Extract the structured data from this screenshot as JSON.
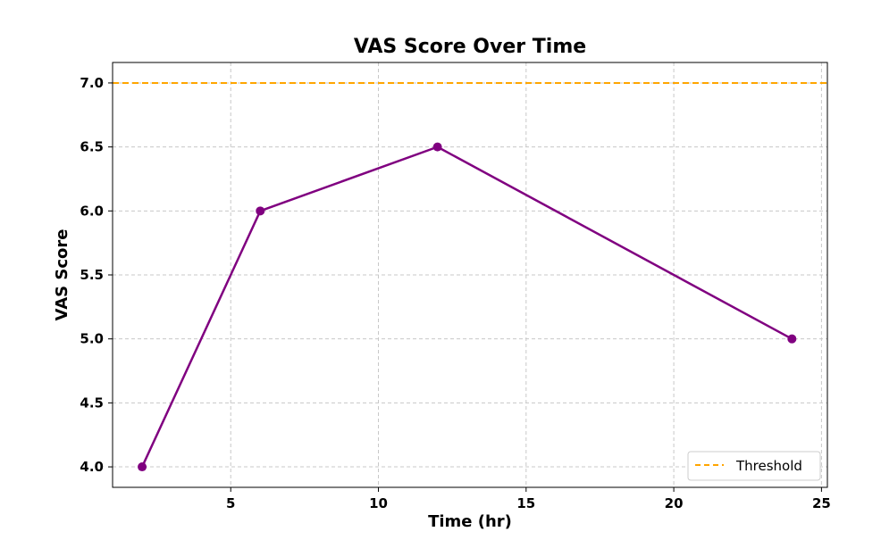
{
  "chart_data": {
    "type": "line",
    "title": "VAS Score Over Time",
    "xlabel": "Time (hr)",
    "ylabel": "VAS Score",
    "xlim": [
      1,
      25.2
    ],
    "ylim": [
      3.84,
      7.16
    ],
    "x_ticks": [
      5,
      10,
      15,
      20,
      25
    ],
    "y_ticks": [
      4.0,
      4.5,
      5.0,
      5.5,
      6.0,
      6.5,
      7.0
    ],
    "x_tick_labels": [
      "5",
      "10",
      "15",
      "20",
      "25"
    ],
    "y_tick_labels": [
      "4.0",
      "4.5",
      "5.0",
      "5.5",
      "6.0",
      "6.5",
      "7.0"
    ],
    "grid": true,
    "legend_position": "bottom-right",
    "series": [
      {
        "x": [
          2,
          6,
          12,
          24
        ],
        "values": [
          4.0,
          6.0,
          6.5,
          5.0
        ],
        "color": "#800080",
        "marker": "circle"
      }
    ],
    "reference_lines": [
      {
        "name": "Threshold",
        "orientation": "horizontal",
        "value": 7.0,
        "color": "#FFA500",
        "style": "dashed"
      }
    ]
  }
}
